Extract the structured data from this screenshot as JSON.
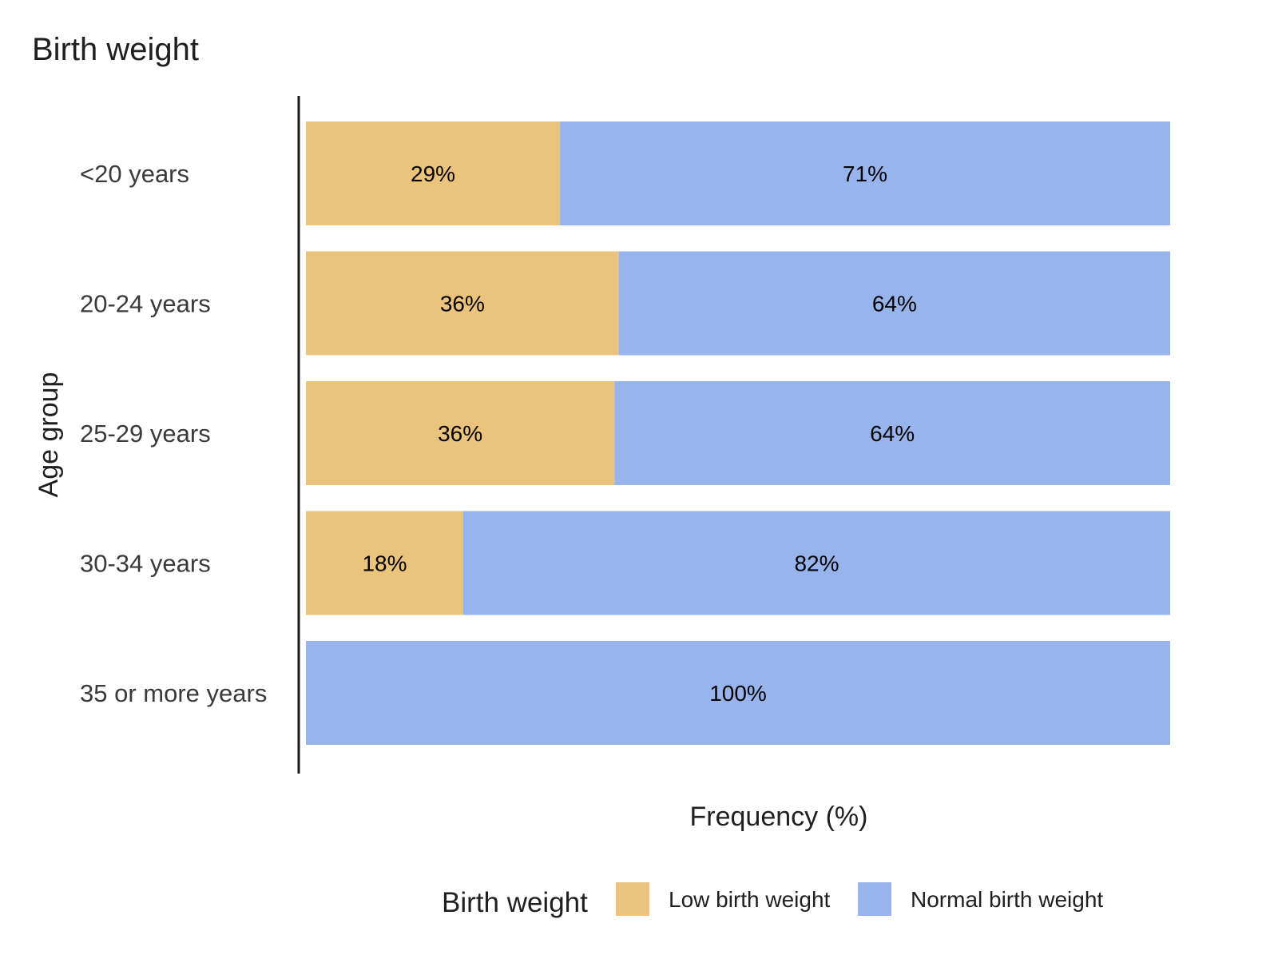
{
  "chart_data": {
    "type": "bar",
    "orientation": "horizontal",
    "stacked": true,
    "title": "Birth weight",
    "xlabel": "Frequency (%)",
    "ylabel": "Age group",
    "xlim": [
      0,
      100
    ],
    "grid": false,
    "categories": [
      "<20 years",
      "20-24 years",
      "25-29 years",
      "30-34 years",
      "35 or more years"
    ],
    "series": [
      {
        "name": "Low birth weight",
        "color": "#EAC37D",
        "values": [
          29.4,
          36.2,
          35.7,
          18.2,
          0
        ],
        "labels": [
          "29%",
          "36%",
          "36%",
          "18%",
          ""
        ]
      },
      {
        "name": "Normal birth weight",
        "color": "#98B4EC",
        "values": [
          70.6,
          63.8,
          64.3,
          81.8,
          100
        ],
        "labels": [
          "71%",
          "64%",
          "64%",
          "82%",
          "100%"
        ]
      }
    ],
    "legend": {
      "title": "Birth weight",
      "position": "bottom"
    }
  }
}
